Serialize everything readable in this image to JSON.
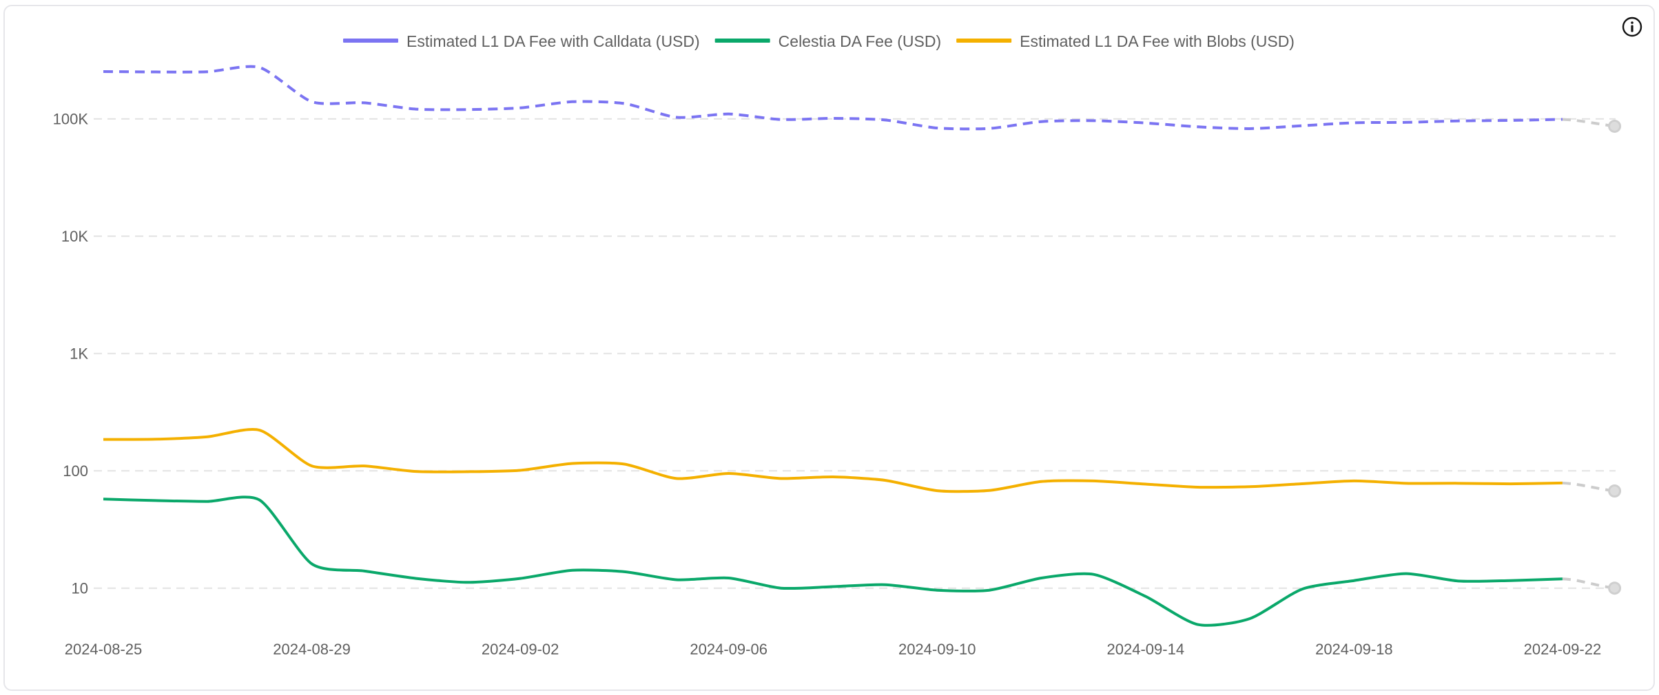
{
  "info_button": {
    "icon": "info-circle-icon",
    "label": "i"
  },
  "chart_data": {
    "type": "line",
    "title": "",
    "xlabel": "",
    "ylabel": "",
    "y_scale": "log",
    "ylim": [
      3,
      400000
    ],
    "grid": true,
    "legend_position": "top-center",
    "y_ticks": [
      {
        "value": 10,
        "label": "10"
      },
      {
        "value": 100,
        "label": "100"
      },
      {
        "value": 1000,
        "label": "1K"
      },
      {
        "value": 10000,
        "label": "10K"
      },
      {
        "value": 100000,
        "label": "100K"
      }
    ],
    "x_tick_labels": [
      "2024-08-25",
      "2024-08-29",
      "2024-09-02",
      "2024-09-06",
      "2024-09-10",
      "2024-09-14",
      "2024-09-18",
      "2024-09-22"
    ],
    "x": [
      "2024-08-25",
      "2024-08-26",
      "2024-08-27",
      "2024-08-28",
      "2024-08-29",
      "2024-08-30",
      "2024-08-31",
      "2024-09-01",
      "2024-09-02",
      "2024-09-03",
      "2024-09-04",
      "2024-09-05",
      "2024-09-06",
      "2024-09-07",
      "2024-09-08",
      "2024-09-09",
      "2024-09-10",
      "2024-09-11",
      "2024-09-12",
      "2024-09-13",
      "2024-09-14",
      "2024-09-15",
      "2024-09-16",
      "2024-09-17",
      "2024-09-18",
      "2024-09-19",
      "2024-09-20",
      "2024-09-21",
      "2024-09-22"
    ],
    "projection": {
      "x": "2024-09-23",
      "color": "#cccccc",
      "note": "projected/incomplete period shown as grey dashed segment with marker"
    },
    "series": [
      {
        "name": "Estimated L1 DA Fee with Calldata (USD)",
        "color": "#7b74f2",
        "style": "dashed",
        "values": [
          253000,
          251000,
          252000,
          274000,
          140000,
          137000,
          121000,
          120000,
          124000,
          140000,
          135000,
          103000,
          110000,
          98700,
          101000,
          97800,
          83500,
          82800,
          94700,
          96500,
          92200,
          85500,
          82500,
          87300,
          92600,
          93400,
          96000,
          97000,
          99000
        ],
        "projected_value": 86500
      },
      {
        "name": "Celestia DA Fee (USD)",
        "color": "#0aa86a",
        "style": "solid",
        "values": [
          57.4,
          55.8,
          54.8,
          56.3,
          16.1,
          14.0,
          12.1,
          11.2,
          12.1,
          14.2,
          13.8,
          11.8,
          12.2,
          10.0,
          10.3,
          10.7,
          9.6,
          9.6,
          12.2,
          13.1,
          8.5,
          4.9,
          5.5,
          9.8,
          11.6,
          13.3,
          11.5,
          11.6,
          12.0
        ],
        "projected_value": 10.0
      },
      {
        "name": "Estimated L1 DA Fee with Blobs (USD)",
        "color": "#f4b000",
        "style": "solid",
        "values": [
          185,
          186,
          195,
          222,
          110,
          110,
          98.7,
          98.3,
          101,
          115.5,
          114,
          86,
          95,
          86,
          88.8,
          83,
          67.7,
          68,
          81,
          82,
          77,
          72.5,
          73.2,
          77.6,
          82,
          78.3,
          78.3,
          77.5,
          78.7
        ],
        "projected_value": 67.3
      }
    ]
  }
}
